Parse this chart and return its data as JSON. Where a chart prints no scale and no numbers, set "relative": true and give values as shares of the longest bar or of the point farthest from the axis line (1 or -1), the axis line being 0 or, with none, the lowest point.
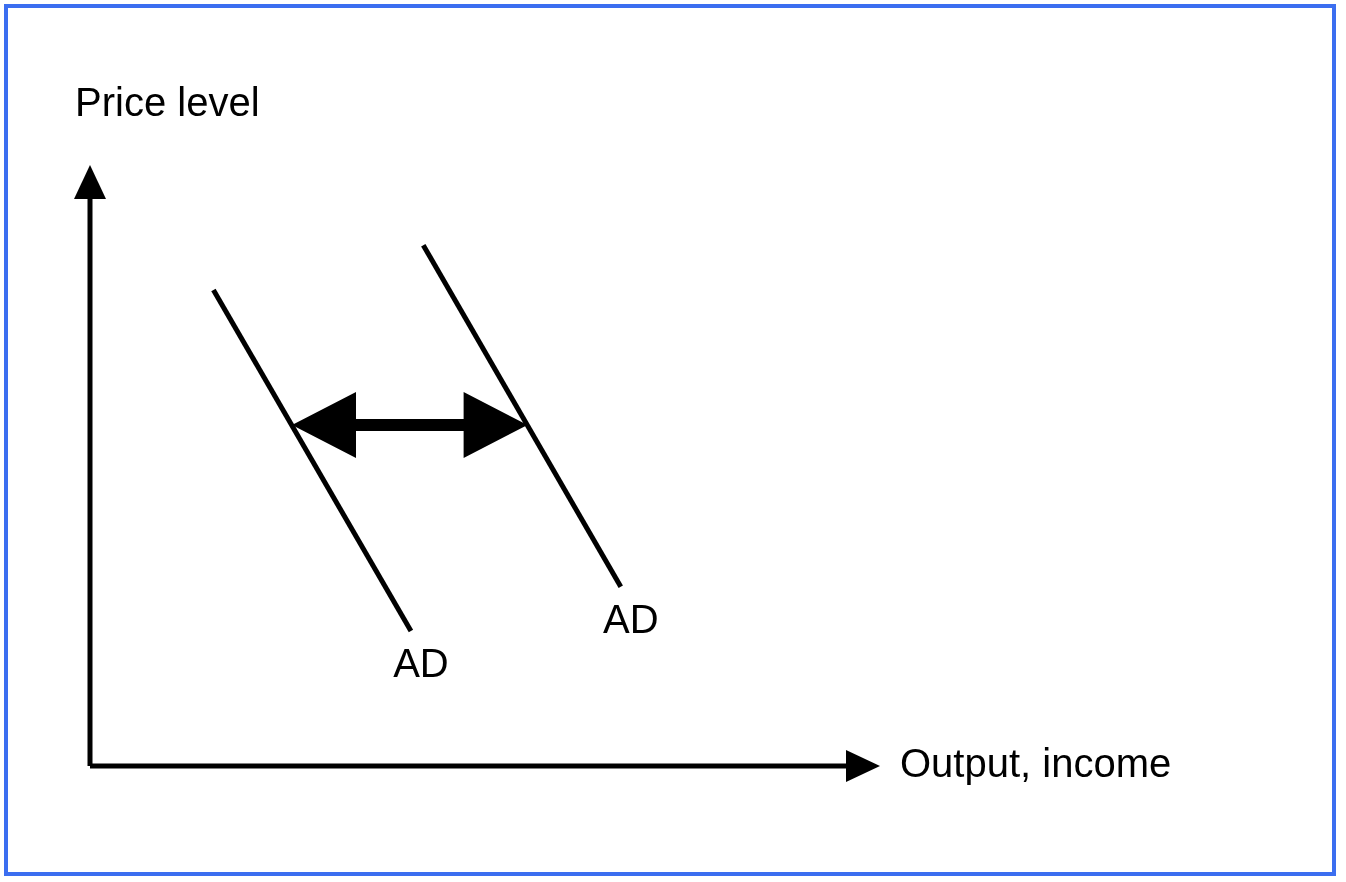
{
  "chart_data": {
    "type": "line",
    "xlabel": "Output, income",
    "ylabel": "Price level",
    "relative": true,
    "categories": [
      null,
      null,
      null,
      null,
      null,
      null,
      null,
      null,
      null,
      null,
      null,
      null,
      null,
      null,
      null,
      null,
      null,
      null,
      null,
      null,
      null,
      null,
      null,
      null,
      null,
      null,
      null,
      null,
      null,
      null,
      null,
      null,
      null,
      null,
      null,
      null,
      null,
      null,
      null,
      null,
      null,
      null,
      null,
      null,
      null,
      null,
      null,
      null,
      null,
      null,
      null,
      null,
      null,
      null,
      null,
      null,
      null,
      null,
      null,
      null,
      null,
      null,
      null,
      null,
      null
    ],
    "series": [
      {
        "name": "AD",
        "color": "#000000",
        "values": [
          null,
          null,
          null,
          null,
          null,
          null,
          null,
          null,
          null,
          null,
          0.914,
          null,
          null,
          null,
          null,
          null,
          null,
          null,
          null,
          null,
          null,
          null,
          null,
          null,
          null,
          null,
          0.259,
          null,
          null,
          null,
          null,
          null,
          null,
          null,
          null,
          null,
          null,
          null,
          null,
          null,
          null,
          null,
          null,
          null,
          null,
          null,
          null,
          null,
          null,
          null,
          null,
          null,
          null,
          null,
          null,
          null,
          null,
          null,
          null,
          null,
          null,
          null,
          null,
          null,
          null
        ]
      },
      {
        "name": "AD",
        "color": "#000000",
        "values": [
          null,
          null,
          null,
          null,
          null,
          null,
          null,
          null,
          null,
          null,
          null,
          null,
          null,
          null,
          null,
          null,
          null,
          null,
          null,
          null,
          null,
          null,
          null,
          null,
          null,
          null,
          null,
          1,
          null,
          null,
          null,
          null,
          null,
          null,
          null,
          null,
          null,
          null,
          null,
          null,
          null,
          null,
          null,
          0.344,
          null,
          null,
          null,
          null,
          null,
          null,
          null,
          null,
          null,
          null,
          null,
          null,
          null,
          null,
          null,
          null,
          null,
          null,
          null,
          null,
          null
        ]
      }
    ]
  }
}
